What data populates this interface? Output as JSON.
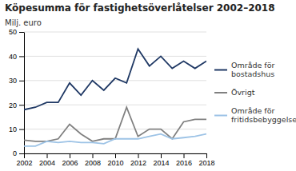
{
  "chart_data": {
    "type": "line",
    "title": "Köpesumma för fastighetsöverlåtelser 2002–2018",
    "ylabel": "Milj. euro",
    "x": [
      2002,
      2003,
      2004,
      2005,
      2006,
      2007,
      2008,
      2009,
      2010,
      2011,
      2012,
      2013,
      2014,
      2015,
      2016,
      2017,
      2018
    ],
    "series": [
      {
        "name": "Område för\nbostadshus",
        "color": "#1f3864",
        "values": [
          18,
          19,
          21,
          21,
          29,
          24,
          30,
          26,
          31,
          29,
          43,
          36,
          40,
          35,
          38,
          35,
          38
        ]
      },
      {
        "name": "Övrigt",
        "color": "#808080",
        "values": [
          5.5,
          5,
          5,
          6,
          12,
          8,
          5,
          6,
          6,
          19,
          7,
          10,
          10,
          6,
          13,
          14,
          14
        ]
      },
      {
        "name": "Område för\nfritidsbebyggelse",
        "color": "#9dc3e6",
        "values": [
          3,
          3,
          5,
          4.5,
          5,
          4.5,
          4.5,
          4,
          6,
          6,
          6,
          7,
          8,
          6,
          6.5,
          7,
          8
        ]
      }
    ],
    "xlim": [
      2002,
      2018
    ],
    "xticks": [
      2002,
      2004,
      2006,
      2008,
      2010,
      2012,
      2014,
      2016,
      2018
    ],
    "ylim": [
      0,
      50
    ],
    "yticks": [
      0,
      10,
      20,
      30,
      40,
      50
    ],
    "grid": "y",
    "legend": "right"
  }
}
